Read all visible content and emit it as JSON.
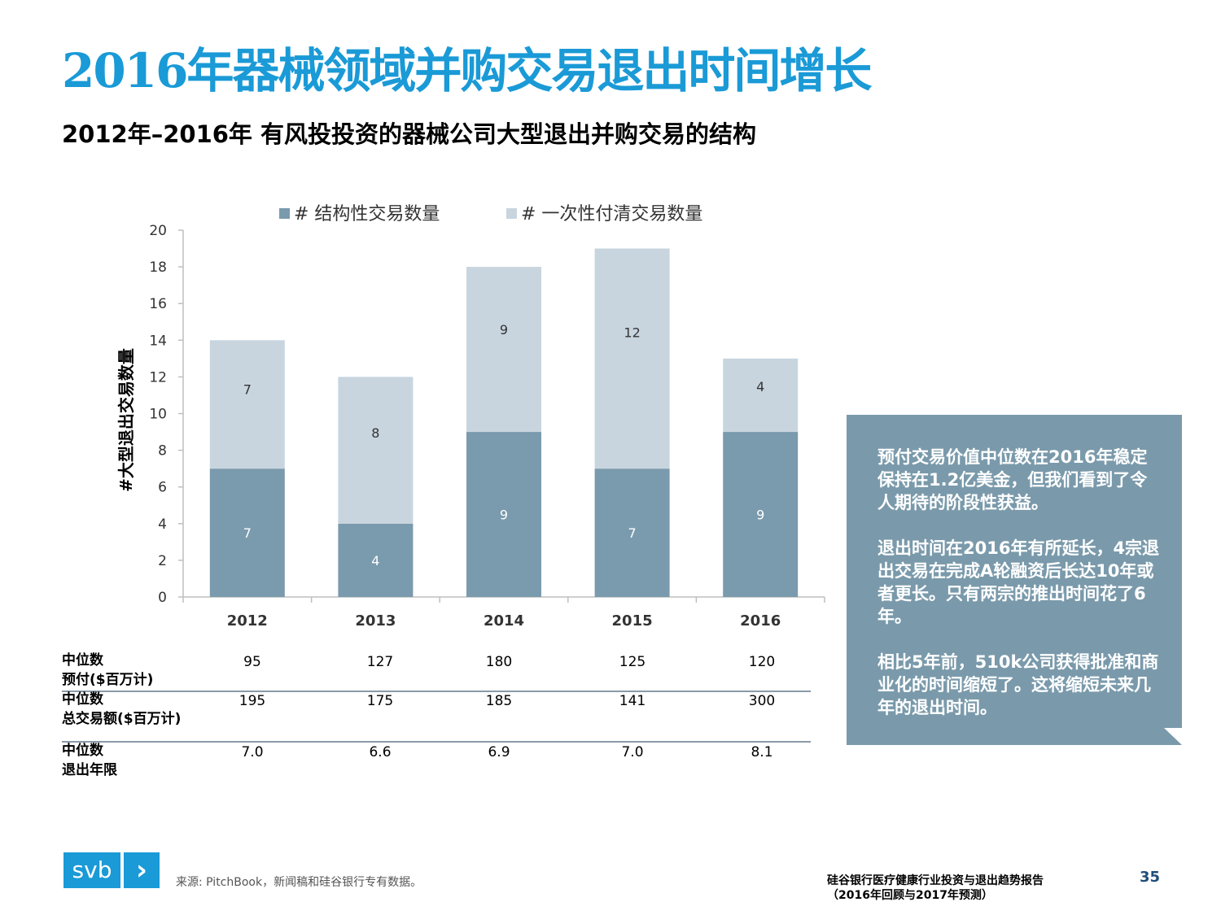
{
  "title": "2016年器械领域并购交易退出时间增长",
  "subtitle": "2012年–2016年  有风投投资的器械公司大型退出并购交易的结构",
  "chart_data": {
    "type": "bar",
    "stacked": true,
    "categories": [
      "2012",
      "2013",
      "2014",
      "2015",
      "2016"
    ],
    "series": [
      {
        "name": "# 结构性交易数量",
        "values": [
          7,
          4,
          9,
          7,
          9
        ],
        "color": "#7a9aad"
      },
      {
        "name": "# 一次性付清交易数量",
        "values": [
          7,
          8,
          9,
          12,
          4
        ],
        "color": "#c8d5df"
      }
    ],
    "ylabel": "#大型退出交易数量",
    "ylim": [
      0,
      20
    ],
    "yticks": [
      0,
      2,
      4,
      6,
      8,
      10,
      12,
      14,
      16,
      18,
      20
    ],
    "legend": "top"
  },
  "table": [
    {
      "label1": "中位数",
      "label2": "预付($百万计)",
      "values": [
        "95",
        "127",
        "180",
        "125",
        "120"
      ]
    },
    {
      "label1": "中位数",
      "label2": "总交易额($百万计)",
      "values": [
        "195",
        "175",
        "185",
        "141",
        "300"
      ]
    },
    {
      "label1": "中位数",
      "label2": "退出年限",
      "values": [
        "7.0",
        "6.6",
        "6.9",
        "7.0",
        "8.1"
      ]
    }
  ],
  "callout": {
    "p1": "预付交易价值中位数在2016年稳定保持在1.2亿美金，但我们看到了令人期待的阶段性获益。",
    "p2": "退出时间在2016年有所延长，4宗退出交易在完成A轮融资后长达10年或者更长。只有两宗的推出时间花了6年。",
    "p3": "相比5年前，510k公司获得批准和商业化的时间缩短了。这将缩短未来几年的退出时间。"
  },
  "footer": {
    "logo_text": "svb",
    "logo_arrow": "›",
    "source": "来源: PitchBook，新闻稿和硅谷银行专有数据。",
    "report_line1": "硅谷银行医疗健康行业投资与退出趋势报告",
    "report_line2": "（2016年回顾与2017年预测）",
    "page": "35"
  }
}
